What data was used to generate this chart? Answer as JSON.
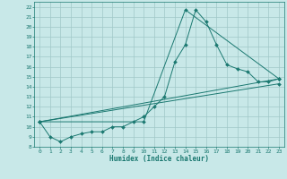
{
  "xlabel": "Humidex (Indice chaleur)",
  "bg_color": "#c8e8e8",
  "grid_color": "#a0c8c8",
  "line_color": "#1a7870",
  "xlim": [
    -0.5,
    23.5
  ],
  "ylim": [
    8,
    22.5
  ],
  "xticks": [
    0,
    1,
    2,
    3,
    4,
    5,
    6,
    7,
    8,
    9,
    10,
    11,
    12,
    13,
    14,
    15,
    16,
    17,
    18,
    19,
    20,
    21,
    22,
    23
  ],
  "yticks": [
    8,
    9,
    10,
    11,
    12,
    13,
    14,
    15,
    16,
    17,
    18,
    19,
    20,
    21,
    22
  ],
  "line1_x": [
    0,
    1,
    2,
    3,
    4,
    5,
    6,
    7,
    8,
    9,
    10,
    11,
    12,
    13,
    14,
    15,
    16,
    17,
    18,
    19,
    20,
    21,
    22,
    23
  ],
  "line1_y": [
    10.5,
    9.0,
    8.5,
    9.0,
    9.3,
    9.5,
    9.5,
    10.0,
    10.0,
    10.5,
    11.0,
    12.0,
    13.0,
    16.5,
    18.2,
    21.7,
    20.5,
    18.2,
    16.2,
    15.8,
    15.5,
    14.5,
    14.5,
    14.8
  ],
  "line2_x": [
    0,
    10,
    14,
    23
  ],
  "line2_y": [
    10.5,
    10.5,
    21.7,
    14.8
  ],
  "line3_x": [
    0,
    23
  ],
  "line3_y": [
    10.5,
    14.8
  ],
  "line4_x": [
    0,
    23
  ],
  "line4_y": [
    10.5,
    14.3
  ]
}
